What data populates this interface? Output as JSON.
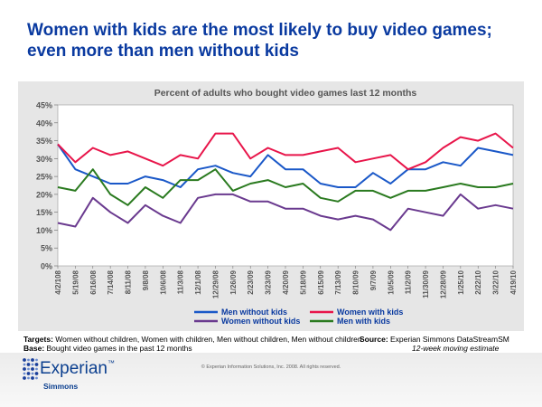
{
  "headline": {
    "line1": "Women with kids are the most likely to buy video games;",
    "line2": "even more than men without kids"
  },
  "notes": {
    "targets_label": "Targets:",
    "targets_text": " Women without children, Women with children, Men without children, Men without children",
    "base_label": "Base:",
    "base_text": " Bought video games in the past 12 months",
    "source_label": "Source:",
    "source_text": "  Experian Simmons DataStreamSM",
    "moving_estimate": "12-week moving estimate"
  },
  "footer": {
    "logo_word": "Experian",
    "logo_tm": "™",
    "logo_sub": "Simmons",
    "copyright": "© Experian Information Solutions, Inc. 2008.  All rights reserved."
  },
  "colors": {
    "men_without_kids": "#1a58c8",
    "women_with_kids": "#e8154a",
    "women_without_kids": "#6a3a8f",
    "men_with_kids": "#2a7a1f",
    "plot_bg": "#ffffff",
    "panel_bg": "#e6e6e6",
    "headline": "#0a3aa0",
    "logo_dot_dark": "#1a3f9a",
    "logo_dot_light": "#6e8ed0"
  },
  "chart_data": {
    "type": "line",
    "title": "Percent of adults who bought video games last 12 months",
    "xlabel": "",
    "ylabel": "",
    "ylim": [
      0,
      45
    ],
    "yticks": [
      "0%",
      "5%",
      "10%",
      "15%",
      "20%",
      "25%",
      "30%",
      "35%",
      "40%",
      "45%"
    ],
    "grid": false,
    "legend_placement": "bottom",
    "x": [
      "4/2/108",
      "5/19/08",
      "6/16/08",
      "7/14/08",
      "8/11/08",
      "9/8/08",
      "10/6/08",
      "11/3/08",
      "12/1/08",
      "12/29/08",
      "1/26/09",
      "2/23/09",
      "3/23/09",
      "4/20/09",
      "5/18/09",
      "6/15/09",
      "7/13/09",
      "8/10/09",
      "9/7/09",
      "10/5/09",
      "11/2/09",
      "11/30/09",
      "12/28/09",
      "1/25/10",
      "2/22/10",
      "3/22/10",
      "4/19/10"
    ],
    "series": [
      {
        "name": "Men without kids",
        "values": [
          34,
          27,
          25,
          23,
          23,
          25,
          24,
          22,
          27,
          28,
          26,
          25,
          31,
          27,
          27,
          23,
          22,
          22,
          26,
          23,
          27,
          27,
          29,
          28,
          33,
          32,
          31
        ]
      },
      {
        "name": "Women with kids",
        "values": [
          34,
          29,
          33,
          31,
          32,
          30,
          28,
          31,
          30,
          37,
          37,
          30,
          33,
          31,
          31,
          32,
          33,
          29,
          30,
          31,
          27,
          29,
          33,
          36,
          35,
          37,
          33
        ]
      },
      {
        "name": "Women without kids",
        "values": [
          12,
          11,
          19,
          15,
          12,
          17,
          14,
          12,
          19,
          20,
          20,
          18,
          18,
          16,
          16,
          14,
          13,
          14,
          13,
          10,
          16,
          15,
          14,
          20,
          16,
          17,
          16
        ]
      },
      {
        "name": "Men with kids",
        "values": [
          22,
          21,
          27,
          20,
          17,
          22,
          19,
          24,
          24,
          27,
          21,
          23,
          24,
          22,
          23,
          19,
          18,
          21,
          21,
          19,
          21,
          21,
          22,
          23,
          22,
          22,
          23
        ]
      }
    ]
  }
}
